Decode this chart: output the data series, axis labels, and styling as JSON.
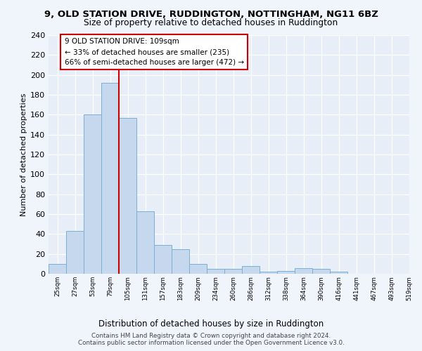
{
  "title_line1": "9, OLD STATION DRIVE, RUDDINGTON, NOTTINGHAM, NG11 6BZ",
  "title_line2": "Size of property relative to detached houses in Ruddington",
  "xlabel": "Distribution of detached houses by size in Ruddington",
  "ylabel": "Number of detached properties",
  "bin_labels": [
    "25sqm",
    "27sqm",
    "53sqm",
    "79sqm",
    "105sqm",
    "131sqm",
    "157sqm",
    "183sqm",
    "209sqm",
    "234sqm",
    "260sqm",
    "286sqm",
    "312sqm",
    "338sqm",
    "364sqm",
    "390sqm",
    "416sqm",
    "441sqm",
    "467sqm",
    "493sqm",
    "519sqm"
  ],
  "bar_values": [
    10,
    43,
    160,
    192,
    157,
    63,
    29,
    25,
    10,
    5,
    5,
    8,
    2,
    3,
    6,
    5,
    2
  ],
  "bar_color": "#c5d8ed",
  "bar_edge_color": "#7aafd4",
  "highlight_line_color": "#cc0000",
  "annotation_line1": "9 OLD STATION DRIVE: 109sqm",
  "annotation_line2": "← 33% of detached houses are smaller (235)",
  "annotation_line3": "66% of semi-detached houses are larger (472) →",
  "annotation_box_facecolor": "#ffffff",
  "annotation_box_edge": "#cc0000",
  "ylim": [
    0,
    240
  ],
  "yticks": [
    0,
    20,
    40,
    60,
    80,
    100,
    120,
    140,
    160,
    180,
    200,
    220,
    240
  ],
  "footer_line1": "Contains HM Land Registry data © Crown copyright and database right 2024.",
  "footer_line2": "Contains public sector information licensed under the Open Government Licence v3.0.",
  "background_color": "#f0f4fb",
  "plot_bg_color": "#e8eef8",
  "grid_color": "#ffffff"
}
